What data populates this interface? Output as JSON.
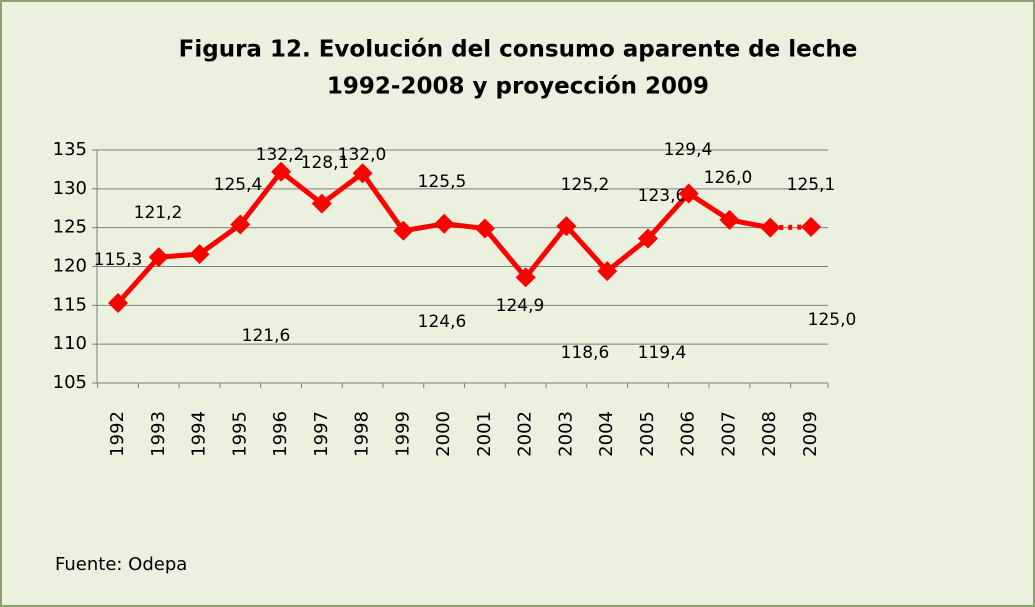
{
  "chart_data": {
    "type": "line",
    "title": "Figura 12. Evolución del consumo aparente de leche",
    "subtitle": "1992-2008 y proyección 2009",
    "source": "Fuente: Odepa",
    "categories": [
      "1992",
      "1993",
      "1994",
      "1995",
      "1996",
      "1997",
      "1998",
      "1999",
      "2000",
      "2001",
      "2002",
      "2003",
      "2004",
      "2005",
      "2006",
      "2007",
      "2008",
      "2009"
    ],
    "series": [
      {
        "name": "Consumo aparente",
        "color": "#ff0000",
        "values": [
          115.3,
          121.2,
          121.6,
          125.4,
          132.2,
          128.1,
          132.0,
          124.6,
          125.5,
          124.9,
          118.6,
          125.2,
          119.4,
          123.6,
          129.4,
          126.0,
          125.0,
          125.1
        ],
        "value_labels": [
          "115,3",
          "121,2",
          "121,6",
          "125,4",
          "132,2",
          "128,1",
          "132,0",
          "124,6",
          "125,5",
          "124,9",
          "118,6",
          "125,2",
          "119,4",
          "123,6",
          "129,4",
          "126,0",
          "125,0",
          "125,1"
        ]
      }
    ],
    "ylim": [
      105,
      135
    ],
    "yticks": [
      105,
      110,
      115,
      120,
      125,
      130,
      135
    ],
    "grid": true
  }
}
